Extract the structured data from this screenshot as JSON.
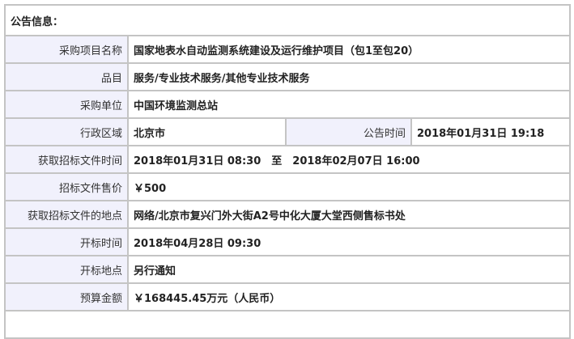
{
  "title": "公告信息：",
  "rows": [
    {
      "label": "采购项目名称",
      "value": "国家地表水自动监测系统建设及运行维护项目（包1至包20）"
    },
    {
      "label": "品目",
      "value": "服务/专业技术服务/其他专业技术服务"
    },
    {
      "label": "采购单位",
      "value": "中国环境监测总站"
    },
    {
      "label": "行政区域",
      "value": "北京市",
      "label2": "公告时间",
      "value2": "2018年01月31日 19:18"
    },
    {
      "label": "获取招标文件时间",
      "value": "2018年01月31日 08:30　至　2018年02月07日 16:00"
    },
    {
      "label": "招标文件售价",
      "value": "￥500"
    },
    {
      "label": "获取招标文件的地点",
      "value": "网络/北京市复兴门外大街A2号中化大厦大堂西侧售标书处"
    },
    {
      "label": "开标时间",
      "value": "2018年04月28日 09:30"
    },
    {
      "label": "开标地点",
      "value": "另行通知"
    },
    {
      "label": "预算金额",
      "value": "￥168445.45万元（人民币）"
    }
  ]
}
